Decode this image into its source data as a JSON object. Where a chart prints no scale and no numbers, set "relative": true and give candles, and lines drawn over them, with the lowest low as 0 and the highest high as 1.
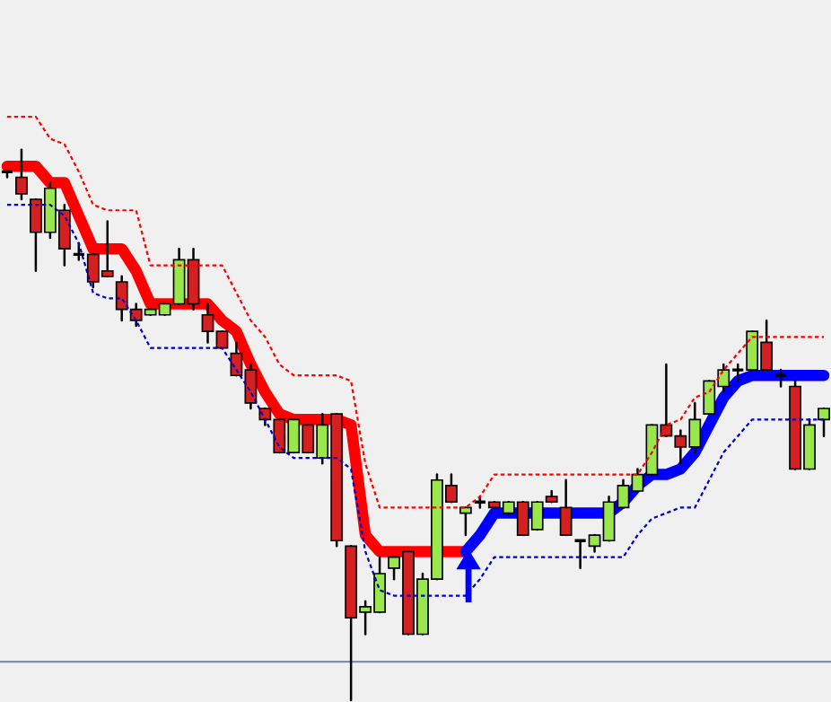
{
  "chart_data": {
    "type": "candlestick",
    "relative": true,
    "tick_labels": false,
    "categories": [
      null,
      null,
      null,
      null,
      null,
      null,
      null,
      null,
      null,
      null,
      null,
      null,
      null,
      null,
      null,
      null,
      null,
      null,
      null,
      null,
      null,
      null,
      null,
      null,
      null,
      null,
      null,
      null,
      null,
      null,
      null,
      null,
      null,
      null,
      null,
      null,
      null,
      null,
      null,
      null,
      null,
      null,
      null,
      null,
      null,
      null,
      null,
      null,
      null,
      null,
      null,
      null,
      null,
      null,
      null,
      null,
      null,
      null
    ],
    "ohlc": [
      [
        0.96,
        0.96,
        0.95,
        0.96
      ],
      [
        0.95,
        1.0,
        0.91,
        0.92
      ],
      [
        0.91,
        0.91,
        0.78,
        0.85
      ],
      [
        0.85,
        0.94,
        0.84,
        0.93
      ],
      [
        0.89,
        0.9,
        0.79,
        0.82
      ],
      [
        0.81,
        0.83,
        0.8,
        0.81
      ],
      [
        0.81,
        0.81,
        0.75,
        0.76
      ],
      [
        0.78,
        0.87,
        0.77,
        0.77
      ],
      [
        0.76,
        0.77,
        0.69,
        0.71
      ],
      [
        0.71,
        0.72,
        0.68,
        0.69
      ],
      [
        0.7,
        0.71,
        0.7,
        0.71
      ],
      [
        0.7,
        0.72,
        0.7,
        0.72
      ],
      [
        0.72,
        0.82,
        0.72,
        0.8
      ],
      [
        0.8,
        0.82,
        0.71,
        0.72
      ],
      [
        0.7,
        0.72,
        0.65,
        0.67
      ],
      [
        0.67,
        0.67,
        0.64,
        0.64
      ],
      [
        0.63,
        0.65,
        0.59,
        0.59
      ],
      [
        0.6,
        0.61,
        0.53,
        0.54
      ],
      [
        0.53,
        0.53,
        0.5,
        0.51
      ],
      [
        0.51,
        0.51,
        0.45,
        0.45
      ],
      [
        0.45,
        0.51,
        0.45,
        0.51
      ],
      [
        0.5,
        0.5,
        0.45,
        0.45
      ],
      [
        0.44,
        0.52,
        0.43,
        0.5
      ],
      [
        0.52,
        0.52,
        0.28,
        0.29
      ],
      [
        0.28,
        0.28,
        0.0,
        0.15
      ],
      [
        0.16,
        0.18,
        0.12,
        0.17
      ],
      [
        0.16,
        0.26,
        0.16,
        0.23
      ],
      [
        0.24,
        0.26,
        0.22,
        0.26
      ],
      [
        0.27,
        0.27,
        0.12,
        0.12
      ],
      [
        0.12,
        0.23,
        0.12,
        0.22
      ],
      [
        0.22,
        0.41,
        0.22,
        0.4
      ],
      [
        0.39,
        0.41,
        0.36,
        0.36
      ],
      [
        0.34,
        0.35,
        0.3,
        0.35
      ],
      [
        0.36,
        0.37,
        0.35,
        0.36
      ],
      [
        0.36,
        0.36,
        0.35,
        0.35
      ],
      [
        0.34,
        0.36,
        0.34,
        0.36
      ],
      [
        0.36,
        0.36,
        0.3,
        0.3
      ],
      [
        0.31,
        0.36,
        0.31,
        0.36
      ],
      [
        0.37,
        0.38,
        0.36,
        0.36
      ],
      [
        0.35,
        0.4,
        0.3,
        0.3
      ],
      [
        0.29,
        0.29,
        0.24,
        0.29
      ],
      [
        0.28,
        0.3,
        0.27,
        0.3
      ],
      [
        0.29,
        0.37,
        0.29,
        0.36
      ],
      [
        0.35,
        0.4,
        0.35,
        0.39
      ],
      [
        0.38,
        0.42,
        0.38,
        0.41
      ],
      [
        0.41,
        0.5,
        0.41,
        0.5
      ],
      [
        0.5,
        0.61,
        0.48,
        0.48
      ],
      [
        0.48,
        0.49,
        0.43,
        0.46
      ],
      [
        0.46,
        0.54,
        0.45,
        0.51
      ],
      [
        0.52,
        0.58,
        0.52,
        0.58
      ],
      [
        0.57,
        0.61,
        0.56,
        0.6
      ],
      [
        0.6,
        0.61,
        0.58,
        0.6
      ],
      [
        0.6,
        0.67,
        0.6,
        0.67
      ],
      [
        0.65,
        0.69,
        0.6,
        0.6
      ],
      [
        0.59,
        0.6,
        0.57,
        0.59
      ],
      [
        0.57,
        0.58,
        0.42,
        0.42
      ],
      [
        0.42,
        0.51,
        0.42,
        0.5
      ],
      [
        0.51,
        0.53,
        0.48,
        0.53
      ]
    ],
    "colors": [
      "#000000",
      "#d42020",
      "#d42020",
      "#99e64d",
      "#d42020",
      "#000000",
      "#d42020",
      "#d42020",
      "#d42020",
      "#d42020",
      "#99e64d",
      "#99e64d",
      "#99e64d",
      "#d42020",
      "#d42020",
      "#d42020",
      "#d42020",
      "#d42020",
      "#d42020",
      "#d42020",
      "#99e64d",
      "#d42020",
      "#99e64d",
      "#d42020",
      "#d42020",
      "#99e64d",
      "#99e64d",
      "#99e64d",
      "#d42020",
      "#99e64d",
      "#99e64d",
      "#d42020",
      "#99e64d",
      "#000000",
      "#d42020",
      "#99e64d",
      "#d42020",
      "#99e64d",
      "#d42020",
      "#d42020",
      "#000000",
      "#99e64d",
      "#99e64d",
      "#99e64d",
      "#99e64d",
      "#99e64d",
      "#d42020",
      "#d42020",
      "#99e64d",
      "#99e64d",
      "#99e64d",
      "#000000",
      "#99e64d",
      "#d42020",
      "#000000",
      "#d42020",
      "#99e64d",
      "#99e64d"
    ],
    "series": [
      {
        "type": "line",
        "color": "#ff0000",
        "line_style": "dashed",
        "values": [
          1.06,
          1.06,
          1.06,
          1.02,
          1.01,
          0.96,
          0.9,
          0.89,
          0.89,
          0.89,
          0.79,
          0.79,
          0.79,
          0.79,
          0.79,
          0.79,
          0.74,
          0.69,
          0.66,
          0.61,
          0.59,
          0.59,
          0.59,
          0.59,
          0.58,
          0.43,
          0.35,
          0.35,
          0.35,
          0.35,
          0.35,
          0.35,
          0.35,
          0.37,
          0.41,
          0.41,
          0.41,
          0.41,
          0.41,
          0.41,
          0.41,
          0.41,
          0.41,
          0.41,
          0.41,
          0.45,
          0.5,
          0.51,
          0.55,
          0.56,
          0.6,
          0.63,
          0.66,
          0.66,
          0.66,
          0.66,
          0.66,
          0.66
        ]
      },
      {
        "type": "line",
        "color": "#0000cc",
        "line_style": "dashed",
        "values": [
          0.9,
          0.9,
          0.9,
          0.9,
          0.88,
          0.83,
          0.74,
          0.73,
          0.73,
          0.69,
          0.64,
          0.64,
          0.64,
          0.64,
          0.64,
          0.64,
          0.6,
          0.56,
          0.51,
          0.46,
          0.44,
          0.44,
          0.44,
          0.44,
          0.42,
          0.27,
          0.2,
          0.19,
          0.19,
          0.19,
          0.19,
          0.19,
          0.19,
          0.22,
          0.26,
          0.26,
          0.26,
          0.26,
          0.26,
          0.26,
          0.26,
          0.26,
          0.26,
          0.26,
          0.3,
          0.33,
          0.34,
          0.35,
          0.35,
          0.4,
          0.45,
          0.48,
          0.51,
          0.51,
          0.51,
          0.51,
          0.51,
          0.51
        ]
      },
      {
        "type": "line",
        "color": "#ff0000",
        "line_style": "solid",
        "values": [
          0.97,
          0.97,
          0.97,
          0.94,
          0.94,
          0.88,
          0.82,
          0.82,
          0.82,
          0.78,
          0.72,
          0.72,
          0.72,
          0.72,
          0.72,
          0.69,
          0.67,
          0.61,
          0.56,
          0.52,
          0.51,
          0.51,
          0.51,
          0.51,
          0.5,
          0.3,
          0.27,
          0.27,
          0.27,
          0.27,
          0.27,
          0.27,
          0.27,
          null,
          null,
          null,
          null,
          null,
          null,
          null,
          null,
          null,
          null,
          null,
          null,
          null,
          null,
          null,
          null,
          null,
          null,
          null,
          null,
          null,
          null,
          null,
          null,
          null
        ]
      },
      {
        "type": "line",
        "color": "#0000ff",
        "line_style": "solid",
        "values": [
          null,
          null,
          null,
          null,
          null,
          null,
          null,
          null,
          null,
          null,
          null,
          null,
          null,
          null,
          null,
          null,
          null,
          null,
          null,
          null,
          null,
          null,
          null,
          null,
          null,
          null,
          null,
          null,
          null,
          null,
          null,
          null,
          0.27,
          0.3,
          0.34,
          0.34,
          0.34,
          0.34,
          0.34,
          0.34,
          0.34,
          0.34,
          0.34,
          0.36,
          0.39,
          0.41,
          0.41,
          0.42,
          0.45,
          0.5,
          0.55,
          0.58,
          0.59,
          0.59,
          0.59,
          0.59,
          0.59,
          0.59
        ]
      }
    ],
    "ref_lines": [
      {
        "axis": "y",
        "value": 0.07,
        "color": "#8090a8"
      }
    ]
  }
}
